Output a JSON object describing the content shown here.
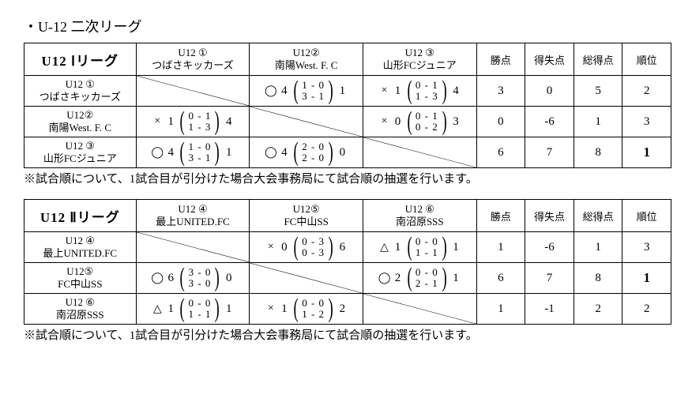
{
  "page_title": "・U-12 二次リーグ",
  "footnote": "※試合順について、1試合目が引分けた場合大会事務局にて試合順の抽選を行います。",
  "stat_headers": [
    "勝点",
    "得失点",
    "総得点",
    "順位"
  ],
  "leagues": [
    {
      "name": "U12 Ⅰリーグ",
      "teams": [
        {
          "id": "U12 ①",
          "name": "つばさキッカーズ"
        },
        {
          "id": "U12②",
          "name": "南陽West. F. C"
        },
        {
          "id": "U12 ③",
          "name": "山形FCジュニア"
        }
      ],
      "grid": [
        [
          null,
          {
            "sym": "◯",
            "aggA": 4,
            "s1": "1 - 0",
            "s2": "3 - 1",
            "aggB": 1
          },
          {
            "sym": "×",
            "aggA": 1,
            "s1": "0 - 1",
            "s2": "1 - 3",
            "aggB": 4
          }
        ],
        [
          {
            "sym": "×",
            "aggA": 1,
            "s1": "0 - 1",
            "s2": "1 - 3",
            "aggB": 4
          },
          null,
          {
            "sym": "×",
            "aggA": 0,
            "s1": "0 - 1",
            "s2": "0 - 2",
            "aggB": 3
          }
        ],
        [
          {
            "sym": "◯",
            "aggA": 4,
            "s1": "1 - 0",
            "s2": "3 - 1",
            "aggB": 1
          },
          {
            "sym": "◯",
            "aggA": 4,
            "s1": "2 - 0",
            "s2": "2 - 0",
            "aggB": 0
          },
          null
        ]
      ],
      "stats": [
        {
          "pts": 3,
          "gd": "0",
          "gf": 5,
          "rank": 2,
          "bold": false
        },
        {
          "pts": 0,
          "gd": "-6",
          "gf": 1,
          "rank": 3,
          "bold": false
        },
        {
          "pts": 6,
          "gd": "7",
          "gf": 8,
          "rank": 1,
          "bold": true
        }
      ]
    },
    {
      "name": "U12 Ⅱリーグ",
      "teams": [
        {
          "id": "U12 ④",
          "name": "最上UNITED.FC"
        },
        {
          "id": "U12⑤",
          "name": "FC中山SS"
        },
        {
          "id": "U12 ⑥",
          "name": "南沼原SSS"
        }
      ],
      "grid": [
        [
          null,
          {
            "sym": "×",
            "aggA": 0,
            "s1": "0 - 3",
            "s2": "0 - 3",
            "aggB": 6
          },
          {
            "sym": "△",
            "aggA": 1,
            "s1": "0 - 0",
            "s2": "1 - 1",
            "aggB": 1
          }
        ],
        [
          {
            "sym": "◯",
            "aggA": 6,
            "s1": "3 - 0",
            "s2": "3 - 0",
            "aggB": 0
          },
          null,
          {
            "sym": "◯",
            "aggA": 2,
            "s1": "0 - 0",
            "s2": "2 - 1",
            "aggB": 1
          }
        ],
        [
          {
            "sym": "△",
            "aggA": 1,
            "s1": "0 - 0",
            "s2": "1 - 1",
            "aggB": 1
          },
          {
            "sym": "×",
            "aggA": 1,
            "s1": "0 - 0",
            "s2": "1 - 2",
            "aggB": 2
          },
          null
        ]
      ],
      "stats": [
        {
          "pts": 1,
          "gd": "-6",
          "gf": 1,
          "rank": 3,
          "bold": false
        },
        {
          "pts": 6,
          "gd": "7",
          "gf": 8,
          "rank": 1,
          "bold": true
        },
        {
          "pts": 1,
          "gd": "-1",
          "gf": 2,
          "rank": 2,
          "bold": false
        }
      ]
    }
  ]
}
